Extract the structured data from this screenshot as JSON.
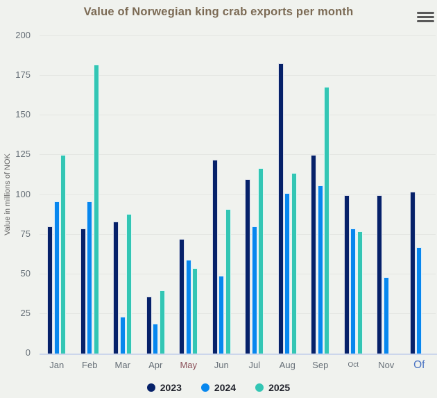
{
  "chart_data": {
    "type": "bar",
    "title": "Value of Norwegian king crab exports per month",
    "xlabel": "",
    "ylabel": "Value in millions of NOK",
    "ylim": [
      0,
      200
    ],
    "ytick_interval": 25,
    "yticks": [
      0,
      25,
      50,
      75,
      100,
      125,
      150,
      175,
      200
    ],
    "grid": true,
    "legend_position": "bottom",
    "categories": [
      "Jan",
      "Feb",
      "Mar",
      "Apr",
      "May",
      "Jun",
      "Jul",
      "Aug",
      "Sep",
      "Oct",
      "Nov",
      "Of"
    ],
    "series": [
      {
        "name": "2023",
        "color": "#062169",
        "values": [
          80,
          79,
          83,
          36,
          72,
          122,
          110,
          183,
          125,
          100,
          100,
          102
        ]
      },
      {
        "name": "2024",
        "color": "#0787ee",
        "values": [
          96,
          96,
          23,
          19,
          59,
          49,
          80,
          101,
          106,
          79,
          48,
          67
        ]
      },
      {
        "name": "2025",
        "color": "#33c6b4",
        "values": [
          125,
          182,
          88,
          40,
          54,
          91,
          117,
          114,
          168,
          77,
          null,
          null
        ]
      }
    ],
    "x_label_styles": [
      {},
      {},
      {},
      {},
      {
        "color": "#8a4f58"
      },
      {},
      {},
      {},
      {},
      {
        "font_size_px": 10
      },
      {},
      {
        "color": "#4a73c2",
        "font_size_px": 15.5
      }
    ]
  },
  "colors": {
    "background": "#f0f2ee",
    "title_text": "#7b6a54",
    "axis_label_text": "#666f77",
    "gridline": "#e4e6e2",
    "axis_line": "#ccd6eb",
    "legend_text": "#20222b",
    "menu_icon": "#595959",
    "bar_border": "#ffffff"
  },
  "context_menu": {
    "icon": "hamburger-menu"
  }
}
